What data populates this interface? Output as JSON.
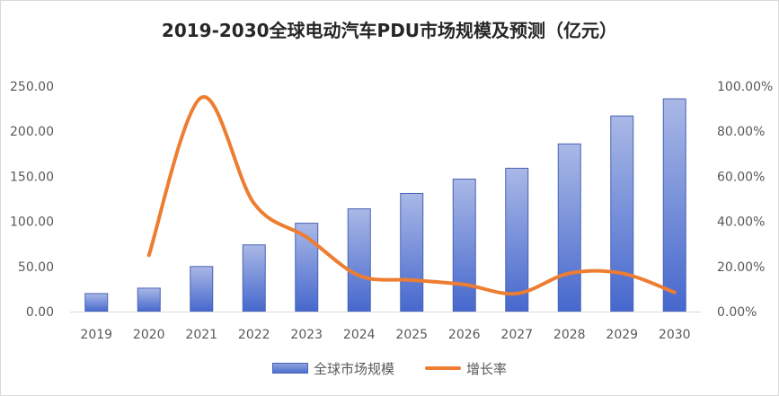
{
  "chart_data": {
    "type": "bar+line",
    "title": "2019-2030全球电动汽车PDU市场规模及预测（亿元）",
    "categories": [
      "2019",
      "2020",
      "2021",
      "2022",
      "2023",
      "2024",
      "2025",
      "2026",
      "2027",
      "2028",
      "2029",
      "2030"
    ],
    "series": [
      {
        "name": "全球市场规模",
        "type": "bar",
        "axis": "left",
        "color": "#4f6fd0",
        "values": [
          20,
          26,
          50,
          74,
          98,
          114,
          131,
          147,
          159,
          186,
          217,
          236
        ]
      },
      {
        "name": "增长率",
        "type": "line",
        "axis": "right",
        "color": "#ed7d31",
        "values": [
          null,
          25,
          95,
          48,
          33,
          16,
          14,
          12,
          8,
          17,
          17,
          8.5
        ]
      }
    ],
    "y_left": {
      "min": 0,
      "max": 250,
      "step": 50,
      "tick_labels": [
        "0.00",
        "50.00",
        "100.00",
        "150.00",
        "200.00",
        "250.00"
      ]
    },
    "y_right": {
      "min": 0,
      "max": 100,
      "step": 20,
      "tick_labels": [
        "0.00%",
        "20.00%",
        "40.00%",
        "60.00%",
        "80.00%",
        "100.00%"
      ]
    },
    "grid": false,
    "legend_position": "bottom"
  },
  "legend": {
    "bar_label": "全球市场规模",
    "line_label": "增长率"
  }
}
